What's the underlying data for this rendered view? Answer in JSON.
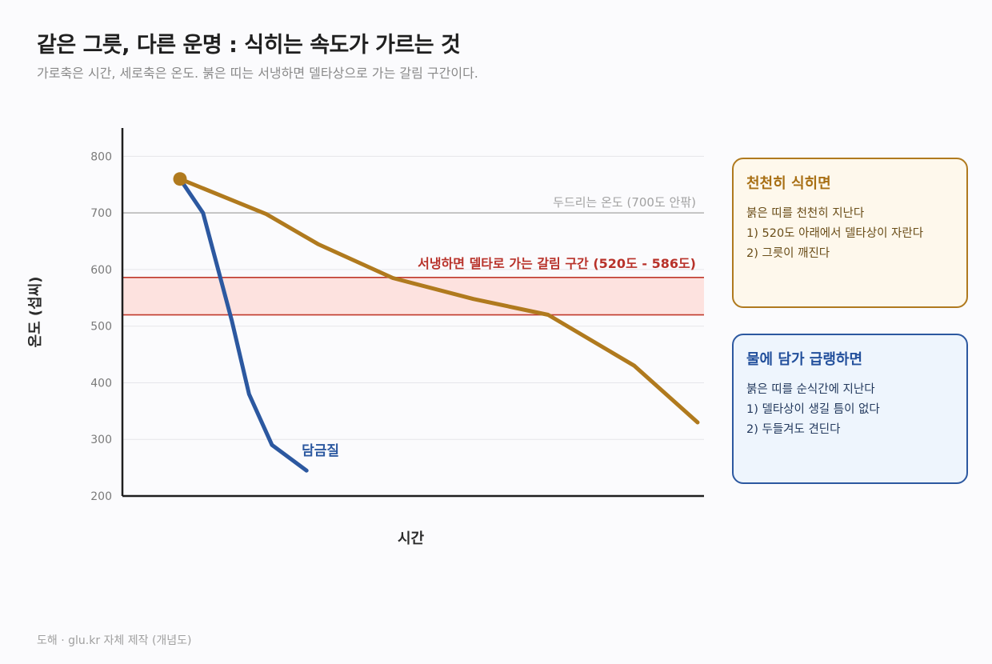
{
  "title": "같은 그릇, 다른 운명 : 식히는 속도가 가르는 것",
  "subtitle": "가로축은 시간, 세로축은 온도. 붉은 띠는 서냉하면 델타상으로 가는 갈림 구간이다.",
  "footer": "도해 · glu.kr 자체 제작 (개념도)",
  "colors": {
    "slow": "#b07a1e",
    "fast": "#2c58a0",
    "band_fill": "#fde2df",
    "band_line": "#c0392b",
    "ref_line": "#bdbdbd"
  },
  "chart_data": {
    "type": "line",
    "xlabel": "시간",
    "ylabel": "온도 (섭씨)",
    "ylim": [
      200,
      850
    ],
    "xlim": [
      0,
      10
    ],
    "yticks": [
      200,
      300,
      400,
      500,
      600,
      700,
      800
    ],
    "grid": true,
    "series": [
      {
        "name": "",
        "color": "#b07a1e",
        "x": [
          1,
          2.5,
          3.4,
          4.7,
          6.1,
          7.4,
          8.9,
          10
        ],
        "y": [
          760,
          698,
          645,
          585,
          548,
          520,
          430,
          330
        ]
      },
      {
        "name": "담금질",
        "color": "#2c58a0",
        "x": [
          1,
          1.4,
          1.9,
          2.2,
          2.6,
          3.2
        ],
        "y": [
          760,
          700,
          510,
          380,
          290,
          245
        ]
      }
    ],
    "start_point": {
      "x": 1,
      "y": 760
    },
    "reference_line": {
      "y": 700,
      "label": "두드리는 온도 (700도 안팎)"
    },
    "band": {
      "y0": 520,
      "y1": 586,
      "label": "서냉하면 델타로 가는 갈림 구간 (520도 - 586도)"
    }
  },
  "cards": {
    "slow": {
      "title": "천천히 식히면",
      "lines": [
        "붉은 띠를 천천히 지난다",
        "1) 520도 아래에서 델타상이 자란다",
        "2) 그릇이 깨진다"
      ]
    },
    "fast": {
      "title": "물에 담가 급랭하면",
      "lines": [
        "붉은 띠를 순식간에 지난다",
        "1) 델타상이 생길 틈이 없다",
        "2) 두들겨도 견딘다"
      ]
    }
  }
}
